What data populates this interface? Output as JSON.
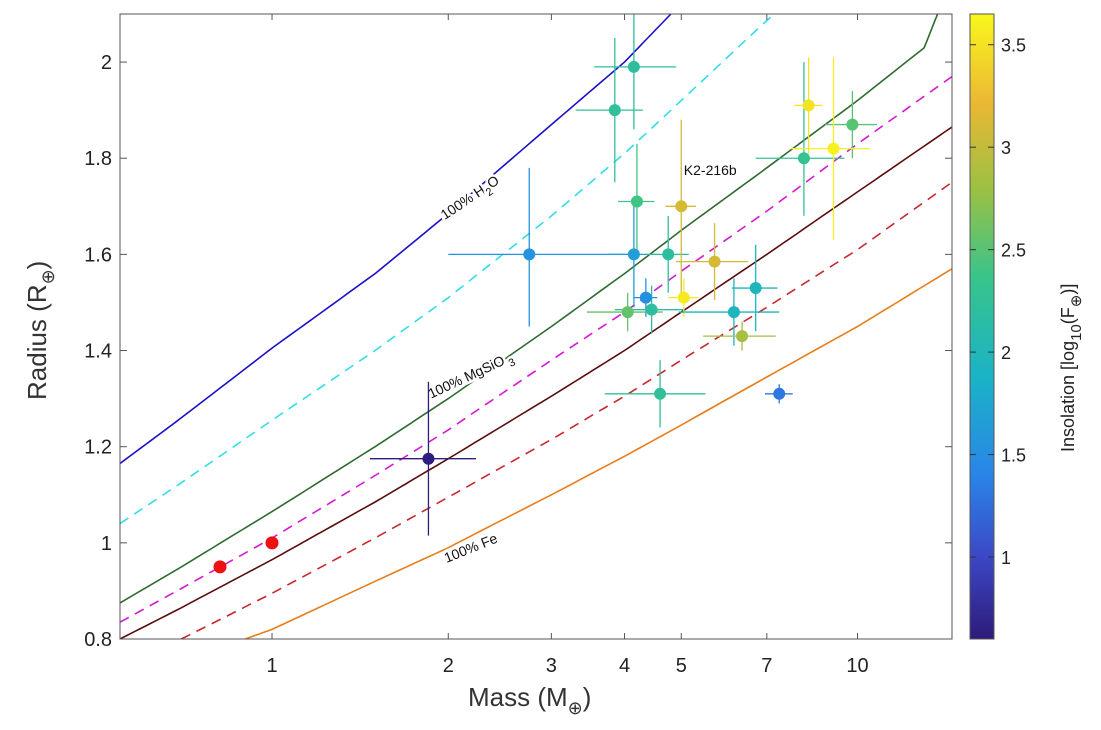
{
  "chart_data": {
    "type": "scatter",
    "title": "",
    "xlabel": "Mass (M",
    "xlabel_sub": "⊕",
    "xlabel_close": ")",
    "ylabel": "Radius (R",
    "ylabel_sub": "⊕",
    "ylabel_close": ")",
    "x_scale": "log",
    "xlim": [
      0.55,
      14.5
    ],
    "ylim": [
      0.8,
      2.1
    ],
    "x_ticks": [
      1,
      2,
      3,
      4,
      5,
      7,
      10
    ],
    "x_tick_labels": [
      "1",
      "2",
      "3",
      "4",
      "5",
      "7",
      "10"
    ],
    "y_ticks": [
      0.8,
      1.0,
      1.2,
      1.4,
      1.6,
      1.8,
      2.0
    ],
    "y_tick_labels": [
      "0.8",
      "1",
      "1.2",
      "1.4",
      "1.6",
      "1.8",
      "2"
    ],
    "grid": false,
    "colorbar": {
      "label": "Insolation [log",
      "label_sub": "10",
      "label_rest": "(F",
      "label_sub2": "⊕",
      "label_close": ")]",
      "range": [
        0.6,
        3.65
      ],
      "ticks": [
        1,
        1.5,
        2,
        2.5,
        3,
        3.5
      ],
      "tick_labels": [
        "1",
        "1.5",
        "2",
        "2.5",
        "3",
        "3.5"
      ],
      "colormap": "viridis"
    },
    "composition_curves": [
      {
        "label": "100% H2O",
        "style": "solid",
        "color": "#1a10c8",
        "points": [
          [
            0.55,
            1.165
          ],
          [
            0.7,
            1.26
          ],
          [
            1,
            1.405
          ],
          [
            1.5,
            1.56
          ],
          [
            2,
            1.685
          ],
          [
            3,
            1.87
          ],
          [
            4,
            2.0
          ],
          [
            4.8,
            2.1
          ]
        ]
      },
      {
        "label": "",
        "style": "dashed",
        "color": "#33dde8",
        "points": [
          [
            0.55,
            1.04
          ],
          [
            0.7,
            1.125
          ],
          [
            1,
            1.255
          ],
          [
            1.5,
            1.4
          ],
          [
            2,
            1.51
          ],
          [
            3,
            1.68
          ],
          [
            4,
            1.81
          ],
          [
            5,
            1.92
          ],
          [
            6.5,
            2.05
          ],
          [
            7.2,
            2.1
          ]
        ]
      },
      {
        "label": "100% MgSiO3",
        "style": "solid",
        "color": "#2e6b2e",
        "points": [
          [
            0.55,
            0.875
          ],
          [
            0.7,
            0.95
          ],
          [
            1,
            1.065
          ],
          [
            1.5,
            1.2
          ],
          [
            2,
            1.3
          ],
          [
            3,
            1.45
          ],
          [
            4,
            1.56
          ],
          [
            5,
            1.65
          ],
          [
            7,
            1.78
          ],
          [
            10,
            1.92
          ],
          [
            13,
            2.03
          ],
          [
            13.7,
            2.1
          ]
        ]
      },
      {
        "label": "",
        "style": "dashed",
        "color": "#d21ad2",
        "points": [
          [
            0.55,
            0.835
          ],
          [
            0.7,
            0.905
          ],
          [
            1,
            1.01
          ],
          [
            1.5,
            1.14
          ],
          [
            2,
            1.235
          ],
          [
            3,
            1.38
          ],
          [
            4,
            1.48
          ],
          [
            5,
            1.565
          ],
          [
            7,
            1.69
          ],
          [
            10,
            1.83
          ],
          [
            14.5,
            1.97
          ]
        ]
      },
      {
        "label": "",
        "style": "solid",
        "color": "#5a0d0d",
        "points": [
          [
            0.55,
            0.8
          ],
          [
            0.7,
            0.865
          ],
          [
            1,
            0.965
          ],
          [
            1.5,
            1.085
          ],
          [
            2,
            1.175
          ],
          [
            3,
            1.305
          ],
          [
            4,
            1.4
          ],
          [
            5,
            1.48
          ],
          [
            7,
            1.6
          ],
          [
            10,
            1.73
          ],
          [
            14.5,
            1.865
          ]
        ]
      },
      {
        "label": "",
        "style": "dashed",
        "color": "#c8282d",
        "points": [
          [
            0.7,
            0.8
          ],
          [
            1,
            0.895
          ],
          [
            1.5,
            1.01
          ],
          [
            2,
            1.095
          ],
          [
            3,
            1.215
          ],
          [
            4,
            1.305
          ],
          [
            5,
            1.38
          ],
          [
            7,
            1.49
          ],
          [
            10,
            1.61
          ],
          [
            14.5,
            1.75
          ]
        ]
      },
      {
        "label": "100% Fe",
        "style": "solid",
        "color": "#e87d1a",
        "points": [
          [
            0.9,
            0.8
          ],
          [
            1,
            0.82
          ],
          [
            1.5,
            0.92
          ],
          [
            2,
            0.99
          ],
          [
            3,
            1.1
          ],
          [
            4,
            1.18
          ],
          [
            5,
            1.245
          ],
          [
            7,
            1.345
          ],
          [
            10,
            1.45
          ],
          [
            14.5,
            1.57
          ]
        ]
      }
    ],
    "curve_labels": [
      {
        "text": "100% H",
        "sub": "2",
        "tail": "O",
        "anchor": [
          2.2,
          1.71
        ],
        "angle": -34
      },
      {
        "text": "100% MgSiO",
        "sub": " 3",
        "tail": "",
        "anchor": [
          2.2,
          1.34
        ],
        "angle": -25
      },
      {
        "text": "100% Fe",
        "sub": "",
        "tail": "",
        "anchor": [
          2.2,
          0.98
        ],
        "angle": -22
      }
    ],
    "solar_system": [
      {
        "name": "",
        "x": 0.815,
        "y": 0.95,
        "color": "#ee1111"
      },
      {
        "name": "",
        "x": 1.0,
        "y": 1.0,
        "color": "#ee1111"
      }
    ],
    "series": [
      {
        "x": 1.85,
        "xerr": [
          0.38,
          0.38
        ],
        "y": 1.175,
        "yerr": [
          0.16,
          0.16
        ],
        "c": 0.62
      },
      {
        "x": 2.75,
        "xerr": [
          0.75,
          1.35
        ],
        "y": 1.6,
        "yerr": [
          0.15,
          0.18
        ],
        "c": 1.55
      },
      {
        "x": 3.85,
        "xerr": [
          0.55,
          0.45
        ],
        "y": 1.9,
        "yerr": [
          0.15,
          0.15
        ],
        "c": 2.25
      },
      {
        "x": 4.15,
        "xerr": [
          0.6,
          0.75
        ],
        "y": 1.99,
        "yerr": [
          0.13,
          0.13
        ],
        "c": 2.2
      },
      {
        "x": 4.2,
        "xerr": [
          0.3,
          0.3
        ],
        "y": 1.71,
        "yerr": [
          0.12,
          0.12
        ],
        "c": 2.4
      },
      {
        "x": 4.15,
        "xerr": [
          0.4,
          0.4
        ],
        "y": 1.6,
        "yerr": [
          0.11,
          0.11
        ],
        "c": 1.65
      },
      {
        "x": 4.75,
        "xerr": [
          0.4,
          0.4
        ],
        "y": 1.6,
        "yerr": [
          0.08,
          0.08
        ],
        "c": 2.2
      },
      {
        "x": 4.35,
        "xerr": [
          0.2,
          0.2
        ],
        "y": 1.51,
        "yerr": [
          0.04,
          0.04
        ],
        "c": 1.5
      },
      {
        "x": 4.05,
        "xerr": [
          0.6,
          0.6
        ],
        "y": 1.48,
        "yerr": [
          0.04,
          0.04
        ],
        "c": 2.55
      },
      {
        "x": 4.45,
        "xerr": [
          0.6,
          0.6
        ],
        "y": 1.485,
        "yerr": [
          0.05,
          0.05
        ],
        "c": 2.2
      },
      {
        "x": 5.0,
        "xerr": [
          0.3,
          0.3
        ],
        "y": 1.7,
        "yerr": [
          0.18,
          0.18
        ],
        "c": 3.1
      },
      {
        "x": 5.05,
        "xerr": [
          0.3,
          0.3
        ],
        "y": 1.51,
        "yerr": [
          0.04,
          0.04
        ],
        "c": 3.55
      },
      {
        "x": 5.7,
        "xerr": [
          0.8,
          0.8
        ],
        "y": 1.585,
        "yerr": [
          0.08,
          0.08
        ],
        "c": 3.1
      },
      {
        "x": 6.15,
        "xerr": [
          1.2,
          1.2
        ],
        "y": 1.48,
        "yerr": [
          0.07,
          0.07
        ],
        "c": 1.95
      },
      {
        "x": 6.7,
        "xerr": [
          0.6,
          0.6
        ],
        "y": 1.53,
        "yerr": [
          0.09,
          0.09
        ],
        "c": 1.95
      },
      {
        "x": 6.35,
        "xerr": [
          0.9,
          0.9
        ],
        "y": 1.43,
        "yerr": [
          0.03,
          0.03
        ],
        "c": 2.85
      },
      {
        "x": 4.6,
        "xerr": [
          0.9,
          0.9
        ],
        "y": 1.31,
        "yerr": [
          0.07,
          0.07
        ],
        "c": 2.25
      },
      {
        "x": 7.35,
        "xerr": [
          0.4,
          0.4
        ],
        "y": 1.31,
        "yerr": [
          0.02,
          0.02
        ],
        "c": 1.3
      },
      {
        "x": 8.25,
        "xerr": [
          0.45,
          0.45
        ],
        "y": 1.91,
        "yerr": [
          0.1,
          0.1
        ],
        "c": 3.5
      },
      {
        "x": 8.1,
        "xerr": [
          1.4,
          1.4
        ],
        "y": 1.8,
        "yerr": [
          0.12,
          0.2
        ],
        "c": 2.3
      },
      {
        "x": 9.8,
        "xerr": [
          1.0,
          1.0
        ],
        "y": 1.87,
        "yerr": [
          0.07,
          0.07
        ],
        "c": 2.5
      },
      {
        "x": 9.1,
        "xerr": [
          1.4,
          1.4
        ],
        "y": 1.82,
        "yerr": [
          0.19,
          0.19
        ],
        "c": 3.6
      }
    ],
    "annotations": [
      {
        "text": "K2-216b",
        "x": 5.05,
        "y": 1.765
      }
    ]
  }
}
